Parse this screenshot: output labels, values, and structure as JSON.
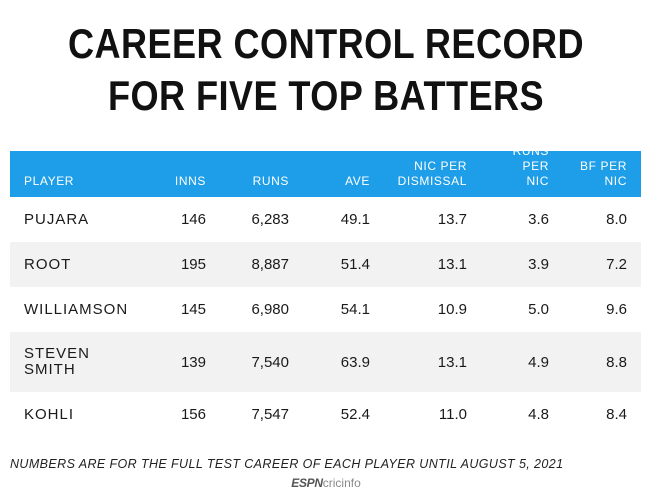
{
  "title": "CAREER CONTROL RECORD FOR FIVE TOP BATTERS",
  "table": {
    "columns": {
      "player": "PLAYER",
      "inns": "INNS",
      "runs": "RUNS",
      "ave": "AVE",
      "nic_per_dismissal": "NIC PER DISMISSAL",
      "runs_per_nic": "RUNS PER NIC",
      "bf_per_nic": "BF PER NIC"
    },
    "rows": [
      {
        "player": "PUJARA",
        "inns": "146",
        "runs": "6,283",
        "ave": "49.1",
        "nic_per_dismissal": "13.7",
        "runs_per_nic": "3.6",
        "bf_per_nic": "8.0"
      },
      {
        "player": "ROOT",
        "inns": "195",
        "runs": "8,887",
        "ave": "51.4",
        "nic_per_dismissal": "13.1",
        "runs_per_nic": "3.9",
        "bf_per_nic": "7.2"
      },
      {
        "player": "WILLIAMSON",
        "inns": "145",
        "runs": "6,980",
        "ave": "54.1",
        "nic_per_dismissal": "10.9",
        "runs_per_nic": "5.0",
        "bf_per_nic": "9.6"
      },
      {
        "player": "STEVEN SMITH",
        "inns": "139",
        "runs": "7,540",
        "ave": "63.9",
        "nic_per_dismissal": "13.1",
        "runs_per_nic": "4.9",
        "bf_per_nic": "8.8"
      },
      {
        "player": "KOHLI",
        "inns": "156",
        "runs": "7,547",
        "ave": "52.4",
        "nic_per_dismissal": "11.0",
        "runs_per_nic": "4.8",
        "bf_per_nic": "8.4"
      }
    ]
  },
  "footnote": "NUMBERS ARE FOR THE FULL TEST CAREER OF EACH PLAYER UNTIL AUGUST 5, 2021",
  "logo": {
    "brand": "ESPN",
    "product": "cricinfo"
  },
  "colors": {
    "header_background": "#1e9ee8",
    "header_text": "#ffffff",
    "alternate_row": "#f2f2f2"
  }
}
